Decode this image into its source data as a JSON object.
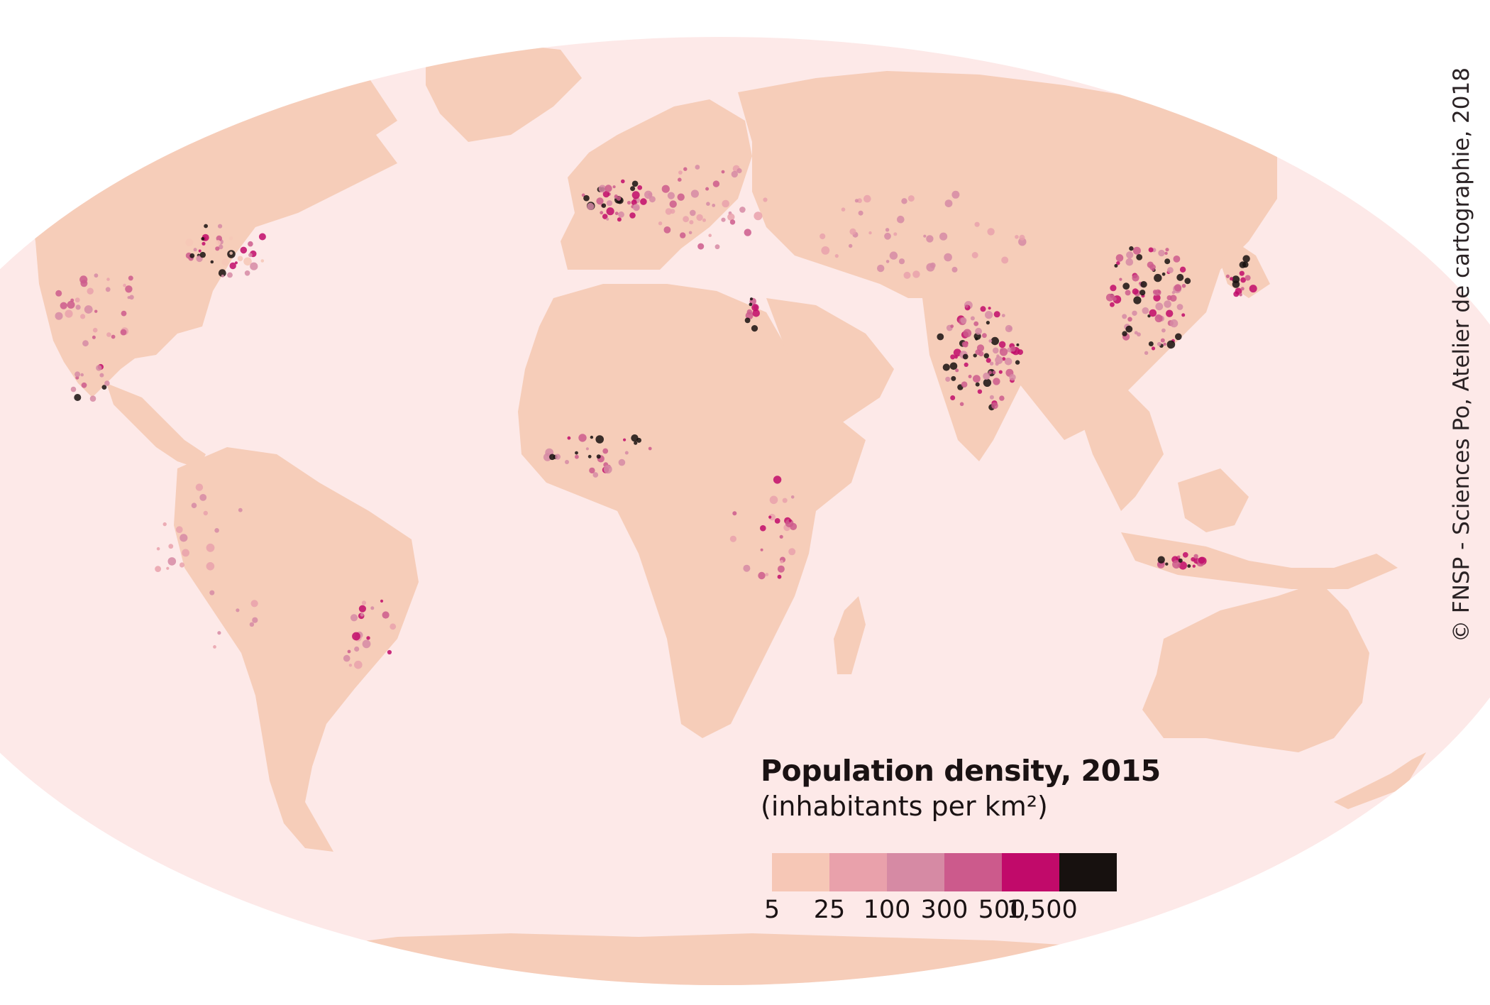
{
  "map": {
    "colors": {
      "ocean": "#fde9e8",
      "land": "#f6cdb9",
      "page_bg": "#ffffff"
    }
  },
  "legend": {
    "title": "Population density, 2015",
    "subtitle": "(inhabitants per km²)",
    "swatches": [
      {
        "color": "#f6c7b6"
      },
      {
        "color": "#e9a1ab"
      },
      {
        "color": "#d68aa4"
      },
      {
        "color": "#cc5a8c"
      },
      {
        "color": "#c10a6a"
      },
      {
        "color": "#17110f"
      }
    ],
    "ticks": [
      "5",
      "25",
      "100",
      "300",
      "500",
      "1,500"
    ]
  },
  "credit": "© FNSP - Sciences Po, Atelier de cartographie, 2018"
}
